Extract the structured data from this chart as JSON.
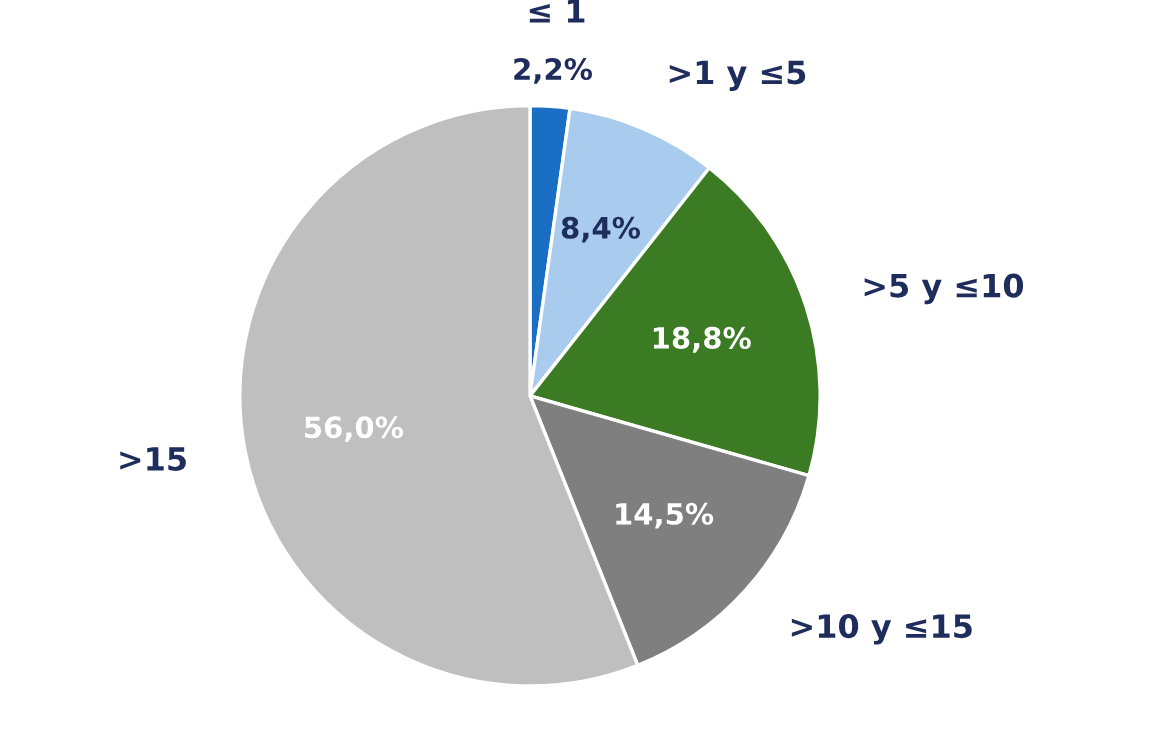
{
  "chart_data": {
    "type": "pie",
    "categories": [
      "≤ 1",
      ">1 y ≤5",
      ">5 y ≤10",
      ">10 y ≤15",
      ">15"
    ],
    "values": [
      2.2,
      8.4,
      18.8,
      14.5,
      56.0
    ],
    "value_labels": [
      "2,2%",
      "8,4%",
      "18,8%",
      "14,5%",
      "56,0%"
    ],
    "colors": [
      "#1a6fc4",
      "#a8cbee",
      "#3b7b23",
      "#7f7f7f",
      "#bfbfbf"
    ]
  }
}
